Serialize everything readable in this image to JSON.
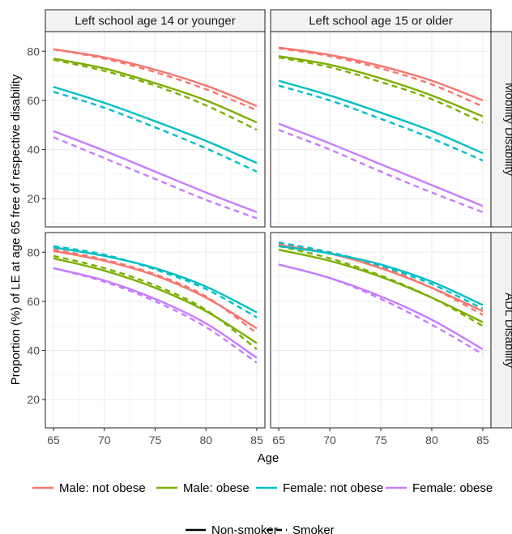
{
  "chart_data": {
    "type": "line",
    "xlabel": "Age",
    "ylabel": "Proportion (%) of LE at age 65 free of respective disability",
    "xlim": [
      64.2,
      85.8
    ],
    "ylim": [
      8.5,
      88
    ],
    "xticks": [
      65,
      70,
      75,
      80,
      85
    ],
    "yticks": [
      20,
      40,
      60,
      80
    ],
    "col_labels": [
      "Left school age 14 or younger",
      "Left school age 15 or older"
    ],
    "row_labels": [
      "Mobility Disability",
      "ADL Disability"
    ],
    "legend_colors": [
      {
        "name": "Male: not obese",
        "color": "#F8766D"
      },
      {
        "name": "Male: obese",
        "color": "#7CAE00"
      },
      {
        "name": "Female: not obese",
        "color": "#00BFC4"
      },
      {
        "name": "Female: obese",
        "color": "#C77CFF"
      }
    ],
    "legend_linetypes": [
      {
        "name": "Non-smoker",
        "dash": "solid"
      },
      {
        "name": "Smoker",
        "dash": "dashed"
      }
    ],
    "x": [
      65,
      70,
      75,
      80,
      85
    ],
    "panels": [
      {
        "row": "Mobility Disability",
        "col": "Left school age 14 or younger",
        "series": [
          {
            "group": "Male: not obese",
            "smoker": false,
            "values": [
              80.8,
              77.5,
              72.5,
              66,
              57.7
            ]
          },
          {
            "group": "Male: not obese",
            "smoker": true,
            "values": [
              80.8,
              77,
              71.5,
              64.5,
              56
            ]
          },
          {
            "group": "Male: obese",
            "smoker": false,
            "values": [
              77,
              73,
              67,
              60,
              51
            ]
          },
          {
            "group": "Male: obese",
            "smoker": true,
            "values": [
              76.5,
              72,
              66,
              58,
              48
            ]
          },
          {
            "group": "Female: not obese",
            "smoker": false,
            "values": [
              65.5,
              59,
              51.5,
              43.5,
              34.5
            ]
          },
          {
            "group": "Female: not obese",
            "smoker": true,
            "values": [
              63.5,
              57,
              49,
              40.5,
              31
            ]
          },
          {
            "group": "Female: obese",
            "smoker": false,
            "values": [
              47.5,
              39.5,
              31,
              22.5,
              14.5
            ]
          },
          {
            "group": "Female: obese",
            "smoker": true,
            "values": [
              45,
              36.5,
              28,
              19.5,
              12
            ]
          }
        ]
      },
      {
        "row": "Mobility Disability",
        "col": "Left school age 15 or older",
        "series": [
          {
            "group": "Male: not obese",
            "smoker": false,
            "values": [
              81.5,
              78.5,
              74,
              68,
              60
            ]
          },
          {
            "group": "Male: not obese",
            "smoker": true,
            "values": [
              81.2,
              78,
              73,
              66.5,
              57.5
            ]
          },
          {
            "group": "Male: obese",
            "smoker": false,
            "values": [
              78,
              74.5,
              69,
              62,
              53.5
            ]
          },
          {
            "group": "Male: obese",
            "smoker": true,
            "values": [
              77.5,
              73.5,
              67.5,
              60.5,
              51
            ]
          },
          {
            "group": "Female: not obese",
            "smoker": false,
            "values": [
              68,
              62,
              55,
              47.5,
              38.5
            ]
          },
          {
            "group": "Female: not obese",
            "smoker": true,
            "values": [
              66,
              60,
              52.5,
              44.5,
              35.5
            ]
          },
          {
            "group": "Female: obese",
            "smoker": false,
            "values": [
              50.5,
              42.5,
              34,
              25.5,
              17
            ]
          },
          {
            "group": "Female: obese",
            "smoker": true,
            "values": [
              48,
              40,
              31,
              22.5,
              14.5
            ]
          }
        ]
      },
      {
        "row": "ADL Disability",
        "col": "Left school age 14 or younger",
        "series": [
          {
            "group": "Male: not obese",
            "smoker": false,
            "values": [
              80.5,
              76.5,
              70.5,
              61.5,
              49
            ]
          },
          {
            "group": "Male: not obese",
            "smoker": true,
            "values": [
              81.2,
              77,
              71,
              62,
              47
            ]
          },
          {
            "group": "Male: obese",
            "smoker": false,
            "values": [
              77.5,
              72.5,
              65.5,
              56,
              43
            ]
          },
          {
            "group": "Male: obese",
            "smoker": true,
            "values": [
              78.5,
              73.5,
              66.5,
              56.5,
              40.5
            ]
          },
          {
            "group": "Female: not obese",
            "smoker": false,
            "values": [
              82,
              78.5,
              73.5,
              66,
              55.5
            ]
          },
          {
            "group": "Female: not obese",
            "smoker": true,
            "values": [
              82.5,
              79,
              73,
              65,
              53.5
            ]
          },
          {
            "group": "Female: obese",
            "smoker": false,
            "values": [
              73.5,
              68.5,
              61,
              51,
              37
            ]
          },
          {
            "group": "Female: obese",
            "smoker": true,
            "values": [
              73.5,
              68,
              60,
              49.5,
              35
            ]
          }
        ]
      },
      {
        "row": "ADL Disability",
        "col": "Left school age 15 or older",
        "series": [
          {
            "group": "Male: not obese",
            "smoker": false,
            "values": [
              83,
              79.5,
              73.5,
              65.5,
              56
            ]
          },
          {
            "group": "Male: not obese",
            "smoker": true,
            "values": [
              83.5,
              79.5,
              74,
              65.5,
              54.5
            ]
          },
          {
            "group": "Male: obese",
            "smoker": false,
            "values": [
              81,
              76.5,
              70,
              61.5,
              51.5
            ]
          },
          {
            "group": "Male: obese",
            "smoker": true,
            "values": [
              82.5,
              77.5,
              70.5,
              61.5,
              50
            ]
          },
          {
            "group": "Female: not obese",
            "smoker": false,
            "values": [
              82.5,
              79.5,
              75,
              68,
              58.5
            ]
          },
          {
            "group": "Female: not obese",
            "smoker": true,
            "values": [
              84,
              80,
              74.5,
              67,
              57
            ]
          },
          {
            "group": "Female: obese",
            "smoker": false,
            "values": [
              75,
              69.5,
              62,
              52.5,
              40.5
            ]
          },
          {
            "group": "Female: obese",
            "smoker": true,
            "values": [
              75,
              69.5,
              61,
              50.5,
              38.5
            ]
          }
        ]
      }
    ]
  }
}
